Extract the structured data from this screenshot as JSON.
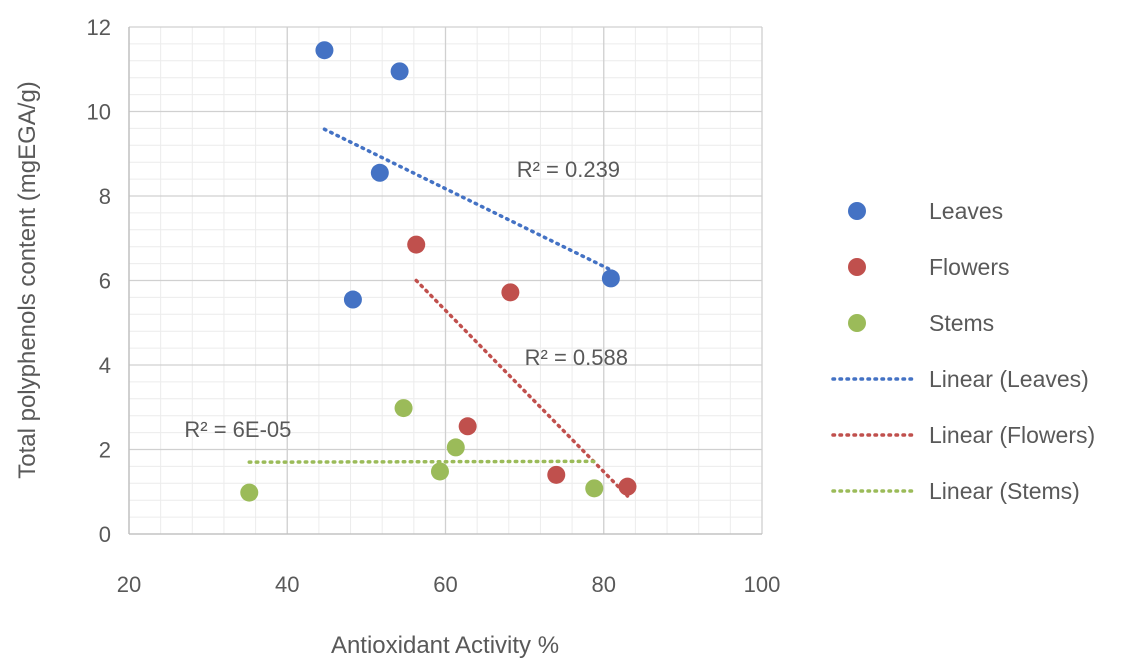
{
  "chart_data": {
    "type": "scatter",
    "title": "",
    "xlabel": "Antioxidant Activity %",
    "ylabel": "Total polyphenols content (mgEGA/g)",
    "xlim": [
      20,
      100
    ],
    "ylim": [
      0,
      12
    ],
    "x_ticks": [
      "20",
      "40",
      "60",
      "80",
      "100"
    ],
    "y_ticks": [
      "0",
      "2",
      "4",
      "6",
      "8",
      "10",
      "12"
    ],
    "grid": true,
    "minor_grid": true,
    "legend_position": "right",
    "series": [
      {
        "name": "Leaves",
        "color": "#4472C4",
        "x": [
          44.7,
          54.2,
          51.7,
          48.3,
          80.9
        ],
        "y": [
          11.45,
          10.95,
          8.55,
          5.55,
          6.05
        ],
        "trendline": {
          "label": "Linear (Leaves)",
          "r2_label": "R² = 0.239",
          "x": [
            44.7,
            80.9
          ],
          "y": [
            9.58,
            6.25
          ]
        }
      },
      {
        "name": "Flowers",
        "color": "#C0504D",
        "x": [
          56.3,
          68.2,
          62.8,
          74.0,
          83.0
        ],
        "y": [
          6.85,
          5.72,
          2.55,
          1.4,
          1.12
        ],
        "trendline": {
          "label": "Linear (Flowers)",
          "r2_label": "R² = 0.588",
          "x": [
            56.3,
            83.0
          ],
          "y": [
            6.0,
            0.9
          ]
        }
      },
      {
        "name": "Stems",
        "color": "#9BBB59",
        "x": [
          35.2,
          54.7,
          59.3,
          61.3,
          78.8
        ],
        "y": [
          0.98,
          2.98,
          1.48,
          2.05,
          1.08
        ],
        "trendline": {
          "label": "Linear (Stems)",
          "r2_label": "R² = 6E-05",
          "x": [
            35.2,
            78.8
          ],
          "y": [
            1.7,
            1.72
          ]
        }
      }
    ]
  }
}
